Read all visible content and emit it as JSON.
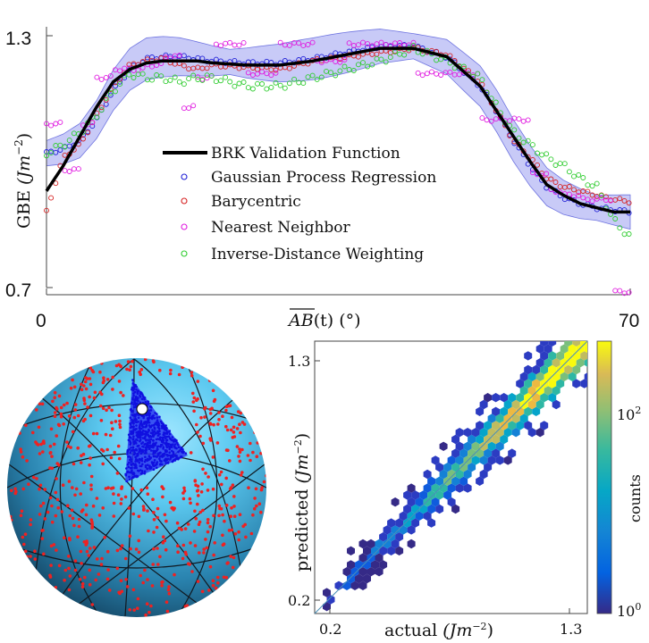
{
  "colors": {
    "brk": "#000000",
    "gpr": "#1f1fd6",
    "bary": "#d62020",
    "nn": "#e01be0",
    "idw": "#2ecc2e",
    "gpr_band": "#9a9ef0",
    "sphere_points": "#ee2222",
    "triangle_points": "#1010e0",
    "diag_line": "#4a8fb8"
  },
  "chart_data": [
    {
      "type": "line",
      "xlabel": "AB(t) (°)",
      "ylabel": "GBE (Jm^-2)",
      "xlim": [
        0,
        70
      ],
      "ylim": [
        0.68,
        1.33
      ],
      "x_tick_labels": [
        "0",
        "70"
      ],
      "y_tick_labels": [
        "0.7",
        "1.3"
      ],
      "legend_position": "center-left",
      "series": [
        {
          "name": "BRK Validation Function",
          "style": "thick-line",
          "x": [
            0,
            2,
            4,
            6,
            8,
            10,
            12,
            14,
            16,
            18,
            20,
            24,
            28,
            32,
            36,
            40,
            44,
            48,
            52,
            54,
            56,
            58,
            60,
            62,
            64,
            66,
            68,
            70
          ],
          "y": [
            0.93,
            0.99,
            1.06,
            1.13,
            1.19,
            1.22,
            1.235,
            1.24,
            1.24,
            1.24,
            1.235,
            1.23,
            1.23,
            1.24,
            1.255,
            1.27,
            1.27,
            1.25,
            1.18,
            1.12,
            1.06,
            1.0,
            0.945,
            0.92,
            0.9,
            0.89,
            0.88,
            0.88
          ]
        },
        {
          "name": "Gaussian Process Regression",
          "style": "circles",
          "x": [
            0,
            2,
            4,
            6,
            8,
            10,
            12,
            14,
            16,
            18,
            20,
            24,
            28,
            32,
            36,
            40,
            44,
            48,
            52,
            54,
            56,
            58,
            60,
            62,
            64,
            66,
            68,
            70
          ],
          "y": [
            1.02,
            1.03,
            1.05,
            1.1,
            1.17,
            1.22,
            1.245,
            1.25,
            1.25,
            1.245,
            1.24,
            1.235,
            1.235,
            1.245,
            1.26,
            1.275,
            1.275,
            1.25,
            1.18,
            1.12,
            1.05,
            0.99,
            0.94,
            0.915,
            0.9,
            0.89,
            0.885,
            0.88
          ]
        },
        {
          "name": "Barycentric",
          "style": "circles",
          "x": [
            0,
            2,
            4,
            6,
            8,
            10,
            12,
            14,
            16,
            18,
            20,
            24,
            28,
            32,
            36,
            40,
            44,
            48,
            52,
            54,
            56,
            58,
            60,
            62,
            64,
            66,
            68,
            70
          ],
          "y": [
            0.88,
            1.01,
            1.04,
            1.11,
            1.18,
            1.23,
            1.24,
            1.245,
            1.23,
            1.22,
            1.23,
            1.225,
            1.22,
            1.24,
            1.25,
            1.26,
            1.27,
            1.255,
            1.19,
            1.12,
            1.05,
            1.01,
            0.96,
            0.94,
            0.93,
            0.92,
            0.91,
            0.905
          ]
        },
        {
          "name": "Nearest Neighbor",
          "style": "circles",
          "x": [
            0,
            2,
            4,
            6,
            8,
            10,
            12,
            14,
            16,
            18,
            20,
            24,
            28,
            32,
            36,
            40,
            44,
            48,
            52,
            54,
            56,
            58,
            60,
            62,
            64,
            66,
            68,
            70
          ],
          "y": [
            1.09,
            1.09,
            0.98,
            1.09,
            1.2,
            1.22,
            1.22,
            1.23,
            1.25,
            1.13,
            1.2,
            1.28,
            1.21,
            1.28,
            1.24,
            1.28,
            1.28,
            1.21,
            1.21,
            1.1,
            1.1,
            1.1,
            0.97,
            0.93,
            0.92,
            0.91,
            0.91,
            0.69
          ]
        },
        {
          "name": "Inverse-Distance Weighting",
          "style": "circles",
          "x": [
            0,
            2,
            4,
            6,
            8,
            10,
            12,
            14,
            16,
            18,
            20,
            24,
            28,
            32,
            36,
            40,
            44,
            48,
            52,
            54,
            56,
            58,
            60,
            62,
            64,
            66,
            68,
            70
          ],
          "y": [
            1.02,
            1.04,
            1.07,
            1.11,
            1.17,
            1.21,
            1.2,
            1.2,
            1.19,
            1.2,
            1.2,
            1.18,
            1.18,
            1.2,
            1.22,
            1.24,
            1.27,
            1.24,
            1.2,
            1.13,
            1.07,
            1.04,
            1.01,
            0.99,
            0.96,
            0.94,
            0.86,
            0.82
          ]
        }
      ]
    },
    {
      "type": "heatmap",
      "subtype": "hexbin-parity",
      "xlabel": "actual (Jm^-2)",
      "ylabel": "predicted (Jm^-2)",
      "xlim": [
        0.15,
        1.38
      ],
      "ylim": [
        0.15,
        1.38
      ],
      "x_tick_labels": [
        "0.2",
        "1.3"
      ],
      "y_tick_labels": [
        "0.2",
        "1.3"
      ],
      "colorbar_label": "counts",
      "colorbar_scale": "log",
      "colorbar_range": [
        1,
        300
      ],
      "colorbar_tick_labels": [
        "10^0",
        "10^2"
      ],
      "diagonal_line": true
    }
  ],
  "plot1": {
    "legend": [
      {
        "label": "BRK Validation Function"
      },
      {
        "label": "Gaussian Process Regression"
      },
      {
        "label": "Barycentric"
      },
      {
        "label": "Nearest Neighbor"
      },
      {
        "label": "Inverse-Distance Weighting"
      }
    ],
    "ylabel_main": "GBE ",
    "ylabel_unit_base": "(Jm",
    "ylabel_unit_exp": "−2",
    "ylabel_unit_close": ")",
    "xlabel_main": "AB",
    "xlabel_rest": "(t) (°)",
    "x_tick_left": "0",
    "x_tick_right": "70",
    "y_tick_top": "1.3",
    "y_tick_bottom": "0.7"
  },
  "plot2": {
    "title": "",
    "xlabel_main": "actual ",
    "xlabel_unit_base": "(Jm",
    "xlabel_unit_exp": "−2",
    "xlabel_unit_close": ")",
    "ylabel_main": "predicted ",
    "ylabel_unit_base": "(Jm",
    "ylabel_unit_exp": "−2",
    "ylabel_unit_close": ")",
    "x_tick_left": "0.2",
    "x_tick_right": "1.3",
    "y_tick_top": "1.3",
    "y_tick_bottom": "0.2",
    "colorbar_label": "counts",
    "colorbar_tick_top_base": "10",
    "colorbar_tick_top_exp": "2",
    "colorbar_tick_bottom_base": "10",
    "colorbar_tick_bottom_exp": "0"
  },
  "sphere": {
    "description_icon": "sphere-mesh-icon"
  }
}
